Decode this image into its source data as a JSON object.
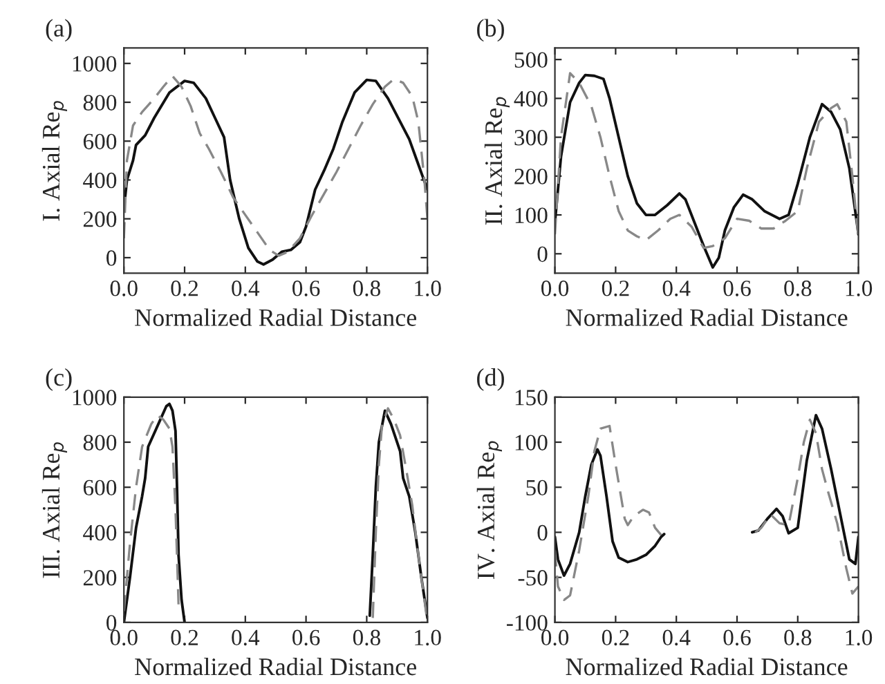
{
  "chart_data": [
    {
      "type": "line",
      "title": "(a)",
      "xlabel": "Normalized Radial Distance",
      "ylabel": "I. Axial Re$_{p}$",
      "xlim": [
        0,
        1
      ],
      "ylim": [
        -80,
        1080
      ],
      "xticks": [
        {
          "value": 0,
          "label": "0.0"
        },
        {
          "value": 0.2,
          "label": "0.2"
        },
        {
          "value": 0.4,
          "label": "0.4"
        },
        {
          "value": 0.6,
          "label": "0.6"
        },
        {
          "value": 0.8,
          "label": "0.8"
        },
        {
          "value": 1,
          "label": "1.0"
        }
      ],
      "yticks": [
        0,
        200,
        400,
        600,
        800,
        1000
      ],
      "grid": false,
      "legend": false,
      "series": [
        {
          "color": "#111111",
          "line_style": "solid",
          "x": [
            0,
            0.01,
            0.03,
            0.04,
            0.07,
            0.1,
            0.15,
            0.2,
            0.23,
            0.27,
            0.3,
            0.33,
            0.35,
            0.38,
            0.41,
            0.44,
            0.46,
            0.49,
            0.52,
            0.55,
            0.58,
            0.6,
            0.63,
            0.66,
            0.69,
            0.72,
            0.76,
            0.8,
            0.83,
            0.87,
            0.91,
            0.94,
            0.97,
            1.0
          ],
          "values": [
            250,
            400,
            500,
            580,
            630,
            720,
            850,
            910,
            900,
            820,
            720,
            620,
            400,
            200,
            50,
            -20,
            -35,
            -10,
            30,
            40,
            80,
            160,
            350,
            450,
            560,
            700,
            850,
            915,
            910,
            820,
            700,
            610,
            480,
            350
          ]
        },
        {
          "color": "#888888",
          "line_style": "dashed",
          "x": [
            0,
            0.01,
            0.03,
            0.06,
            0.1,
            0.13,
            0.16,
            0.19,
            0.22,
            0.25,
            0.28,
            0.32,
            0.36,
            0.4,
            0.44,
            0.48,
            0.51,
            0.54,
            0.58,
            0.62,
            0.66,
            0.7,
            0.74,
            0.78,
            0.82,
            0.86,
            0.89,
            0.92,
            0.95,
            0.97,
            0.99,
            1.0
          ],
          "values": [
            100,
            500,
            680,
            750,
            820,
            880,
            935,
            880,
            780,
            640,
            560,
            440,
            310,
            220,
            130,
            40,
            10,
            30,
            100,
            220,
            330,
            440,
            560,
            680,
            790,
            880,
            920,
            900,
            830,
            700,
            400,
            200
          ]
        }
      ]
    },
    {
      "type": "line",
      "title": "(b)",
      "xlabel": "Normalized Radial Distance",
      "ylabel": "II. Axial Re$_{p}$",
      "xlim": [
        0,
        1
      ],
      "ylim": [
        -50,
        530
      ],
      "xticks": [
        {
          "value": 0,
          "label": "0.0"
        },
        {
          "value": 0.2,
          "label": "0.2"
        },
        {
          "value": 0.4,
          "label": "0.4"
        },
        {
          "value": 0.6,
          "label": "0.6"
        },
        {
          "value": 0.8,
          "label": "0.8"
        },
        {
          "value": 1,
          "label": "1.0"
        }
      ],
      "yticks": [
        0,
        100,
        200,
        300,
        400,
        500
      ],
      "grid": false,
      "legend": false,
      "series": [
        {
          "color": "#111111",
          "line_style": "solid",
          "x": [
            0,
            0.02,
            0.05,
            0.08,
            0.1,
            0.13,
            0.16,
            0.18,
            0.21,
            0.24,
            0.27,
            0.3,
            0.33,
            0.37,
            0.41,
            0.43,
            0.46,
            0.49,
            0.52,
            0.54,
            0.56,
            0.59,
            0.62,
            0.65,
            0.69,
            0.74,
            0.77,
            0.8,
            0.84,
            0.88,
            0.91,
            0.94,
            0.97,
            1.0
          ],
          "values": [
            80,
            250,
            390,
            440,
            460,
            458,
            450,
            400,
            300,
            200,
            130,
            100,
            100,
            125,
            155,
            140,
            80,
            20,
            -35,
            -10,
            60,
            120,
            152,
            140,
            110,
            90,
            100,
            180,
            300,
            385,
            365,
            320,
            220,
            50
          ]
        },
        {
          "color": "#888888",
          "line_style": "dashed",
          "x": [
            0,
            0.02,
            0.05,
            0.08,
            0.12,
            0.15,
            0.18,
            0.21,
            0.24,
            0.27,
            0.3,
            0.34,
            0.38,
            0.41,
            0.45,
            0.49,
            0.52,
            0.56,
            0.6,
            0.64,
            0.68,
            0.72,
            0.76,
            0.8,
            0.83,
            0.87,
            0.91,
            0.93,
            0.96,
            0.98,
            1.0
          ],
          "values": [
            50,
            300,
            465,
            440,
            380,
            300,
            200,
            110,
            60,
            45,
            35,
            60,
            90,
            100,
            70,
            15,
            20,
            40,
            90,
            85,
            65,
            65,
            85,
            110,
            220,
            340,
            375,
            385,
            340,
            200,
            40
          ]
        }
      ]
    },
    {
      "type": "line",
      "title": "(c)",
      "xlabel": "Normalized Radial Distance",
      "ylabel": "III. Axial Re$_{p}$",
      "xlim": [
        0,
        1
      ],
      "ylim": [
        0,
        1000
      ],
      "xticks": [
        {
          "value": 0,
          "label": "0.0"
        },
        {
          "value": 0.2,
          "label": "0.2"
        },
        {
          "value": 0.4,
          "label": "0.4"
        },
        {
          "value": 0.6,
          "label": "0.6"
        },
        {
          "value": 0.8,
          "label": "0.8"
        },
        {
          "value": 1,
          "label": "1.0"
        }
      ],
      "yticks": [
        0,
        200,
        400,
        600,
        800,
        1000
      ],
      "grid": false,
      "legend": false,
      "series": [
        {
          "color": "#111111",
          "line_style": "solid",
          "x": [
            0,
            0.02,
            0.04,
            0.06,
            0.07,
            0.08,
            0.1,
            0.12,
            0.14,
            0.15,
            0.16,
            0.17,
            0.175,
            0.18,
            0.19,
            0.2,
            0.5,
            0.81,
            0.82,
            0.83,
            0.84,
            0.86,
            0.88,
            0.91,
            0.92,
            0.94,
            0.96,
            0.98,
            1.0
          ],
          "values": [
            0,
            200,
            420,
            560,
            640,
            780,
            840,
            900,
            960,
            970,
            940,
            850,
            600,
            300,
            100,
            0,
            null,
            30,
            300,
            600,
            800,
            940,
            880,
            760,
            640,
            560,
            400,
            200,
            20
          ]
        },
        {
          "color": "#888888",
          "line_style": "dashed",
          "x": [
            0,
            0.02,
            0.04,
            0.06,
            0.09,
            0.11,
            0.13,
            0.15,
            0.16,
            0.17,
            0.18,
            0.5,
            0.82,
            0.83,
            0.84,
            0.85,
            0.87,
            0.89,
            0.91,
            0.93,
            0.95,
            0.97,
            0.99,
            1.0
          ],
          "values": [
            50,
            350,
            600,
            780,
            880,
            920,
            900,
            860,
            780,
            500,
            80,
            null,
            20,
            400,
            700,
            870,
            950,
            900,
            830,
            680,
            520,
            300,
            100,
            0
          ]
        }
      ]
    },
    {
      "type": "line",
      "title": "(d)",
      "xlabel": "Normalized Radial Distance",
      "ylabel": "IV. Axial Re$_{p}$",
      "xlim": [
        0,
        1
      ],
      "ylim": [
        -100,
        150
      ],
      "xticks": [
        {
          "value": 0,
          "label": "0.0"
        },
        {
          "value": 0.2,
          "label": "0.2"
        },
        {
          "value": 0.4,
          "label": "0.4"
        },
        {
          "value": 0.6,
          "label": "0.6"
        },
        {
          "value": 0.8,
          "label": "0.8"
        },
        {
          "value": 1,
          "label": "1.0"
        }
      ],
      "yticks": [
        -100,
        -50,
        0,
        50,
        100,
        150
      ],
      "grid": false,
      "legend": false,
      "series": [
        {
          "color": "#111111",
          "line_style": "solid",
          "x": [
            0,
            0.01,
            0.03,
            0.05,
            0.08,
            0.1,
            0.12,
            0.14,
            0.15,
            0.17,
            0.19,
            0.21,
            0.24,
            0.27,
            0.3,
            0.33,
            0.35,
            0.36,
            0.5,
            0.65,
            0.67,
            0.7,
            0.73,
            0.75,
            0.77,
            0.8,
            0.83,
            0.86,
            0.88,
            0.91,
            0.94,
            0.97,
            0.99,
            1.0
          ],
          "values": [
            -5,
            -30,
            -48,
            -35,
            0,
            40,
            75,
            92,
            85,
            40,
            -10,
            -28,
            -33,
            -30,
            -25,
            -15,
            -5,
            -2,
            null,
            0,
            2,
            15,
            26,
            18,
            -1,
            5,
            80,
            130,
            115,
            70,
            20,
            -30,
            -35,
            -5
          ]
        },
        {
          "color": "#888888",
          "line_style": "dashed",
          "x": [
            0,
            0.01,
            0.03,
            0.05,
            0.08,
            0.11,
            0.13,
            0.15,
            0.18,
            0.2,
            0.23,
            0.24,
            0.26,
            0.29,
            0.31,
            0.33,
            0.35,
            0.5,
            0.66,
            0.68,
            0.71,
            0.74,
            0.77,
            0.8,
            0.82,
            0.84,
            0.86,
            0.88,
            0.9,
            0.93,
            0.96,
            0.98,
            1.0
          ],
          "values": [
            -20,
            -60,
            -75,
            -70,
            -20,
            40,
            90,
            115,
            118,
            75,
            15,
            8,
            18,
            25,
            22,
            5,
            -3,
            null,
            0,
            5,
            20,
            10,
            8,
            60,
            100,
            125,
            110,
            70,
            45,
            10,
            -40,
            -68,
            -60
          ]
        }
      ]
    }
  ]
}
